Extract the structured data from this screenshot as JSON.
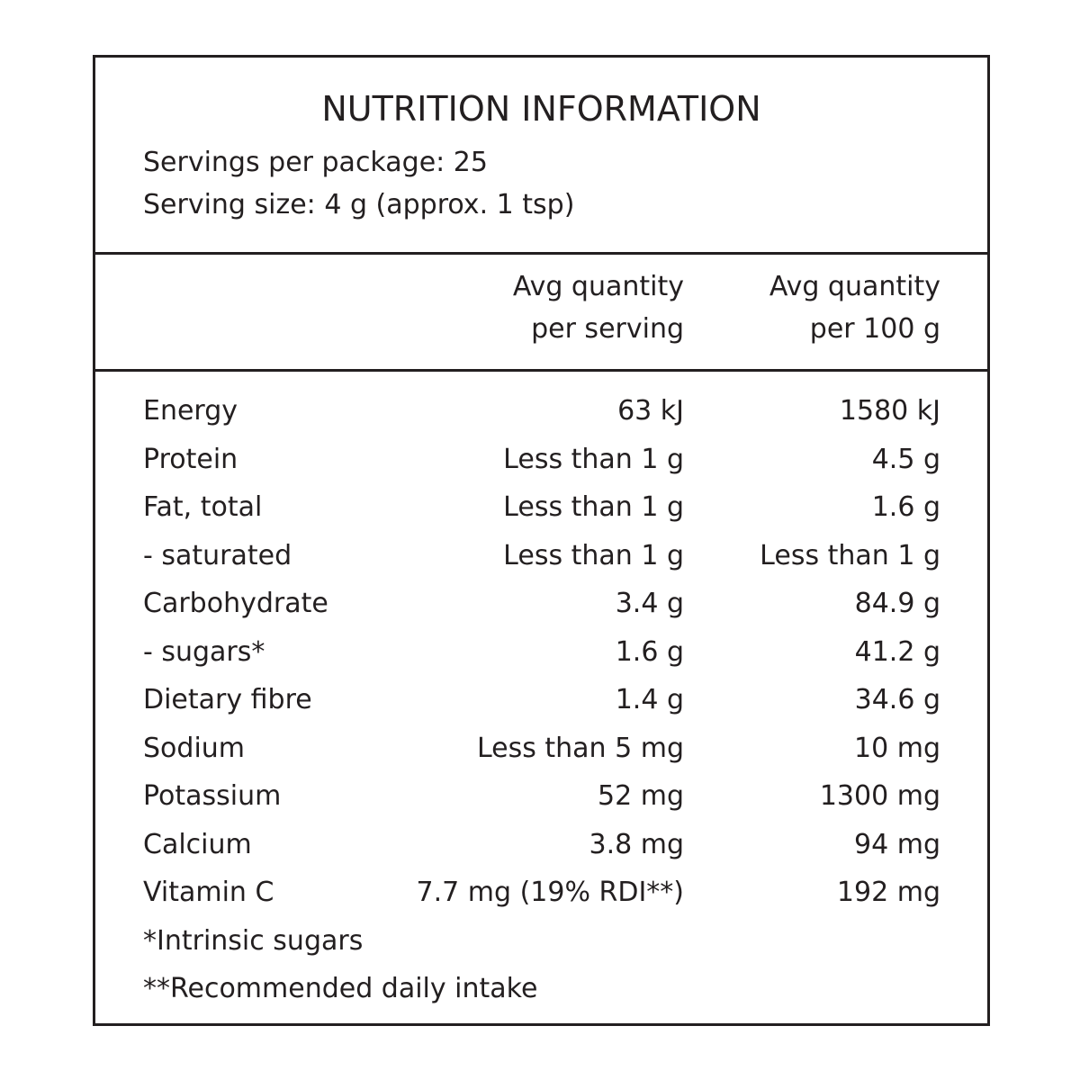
{
  "header": {
    "title": "NUTRITION INFORMATION",
    "servings": "Servings per package: 25",
    "serving_size": "Serving size: 4 g (approx. 1 tsp)"
  },
  "table": {
    "columns": [
      [
        "Avg quantity",
        "per serving"
      ],
      [
        "Avg quantity",
        "per 100 g"
      ]
    ],
    "rows": [
      [
        "Energy",
        "63 kJ",
        "1580 kJ"
      ],
      [
        "Protein",
        "Less than 1 g",
        "4.5 g"
      ],
      [
        "Fat, total",
        "Less than 1 g",
        "1.6 g"
      ],
      [
        "- saturated",
        "Less than 1 g",
        "Less than 1 g"
      ],
      [
        "Carbohydrate",
        "3.4 g",
        "84.9 g"
      ],
      [
        "- sugars*",
        "1.6 g",
        "41.2 g"
      ],
      [
        "Dietary fibre",
        "1.4 g",
        "34.6 g"
      ],
      [
        "Sodium",
        "Less than 5 mg",
        "10 mg"
      ],
      [
        "Potassium",
        "52 mg",
        "1300 mg"
      ],
      [
        "Calcium",
        "3.8 mg",
        "94 mg"
      ],
      [
        "Vitamin C",
        "7.7 mg (19% RDI**)",
        "192 mg"
      ]
    ]
  },
  "footnotes": [
    "*Intrinsic sugars",
    "**Recommended daily intake"
  ]
}
